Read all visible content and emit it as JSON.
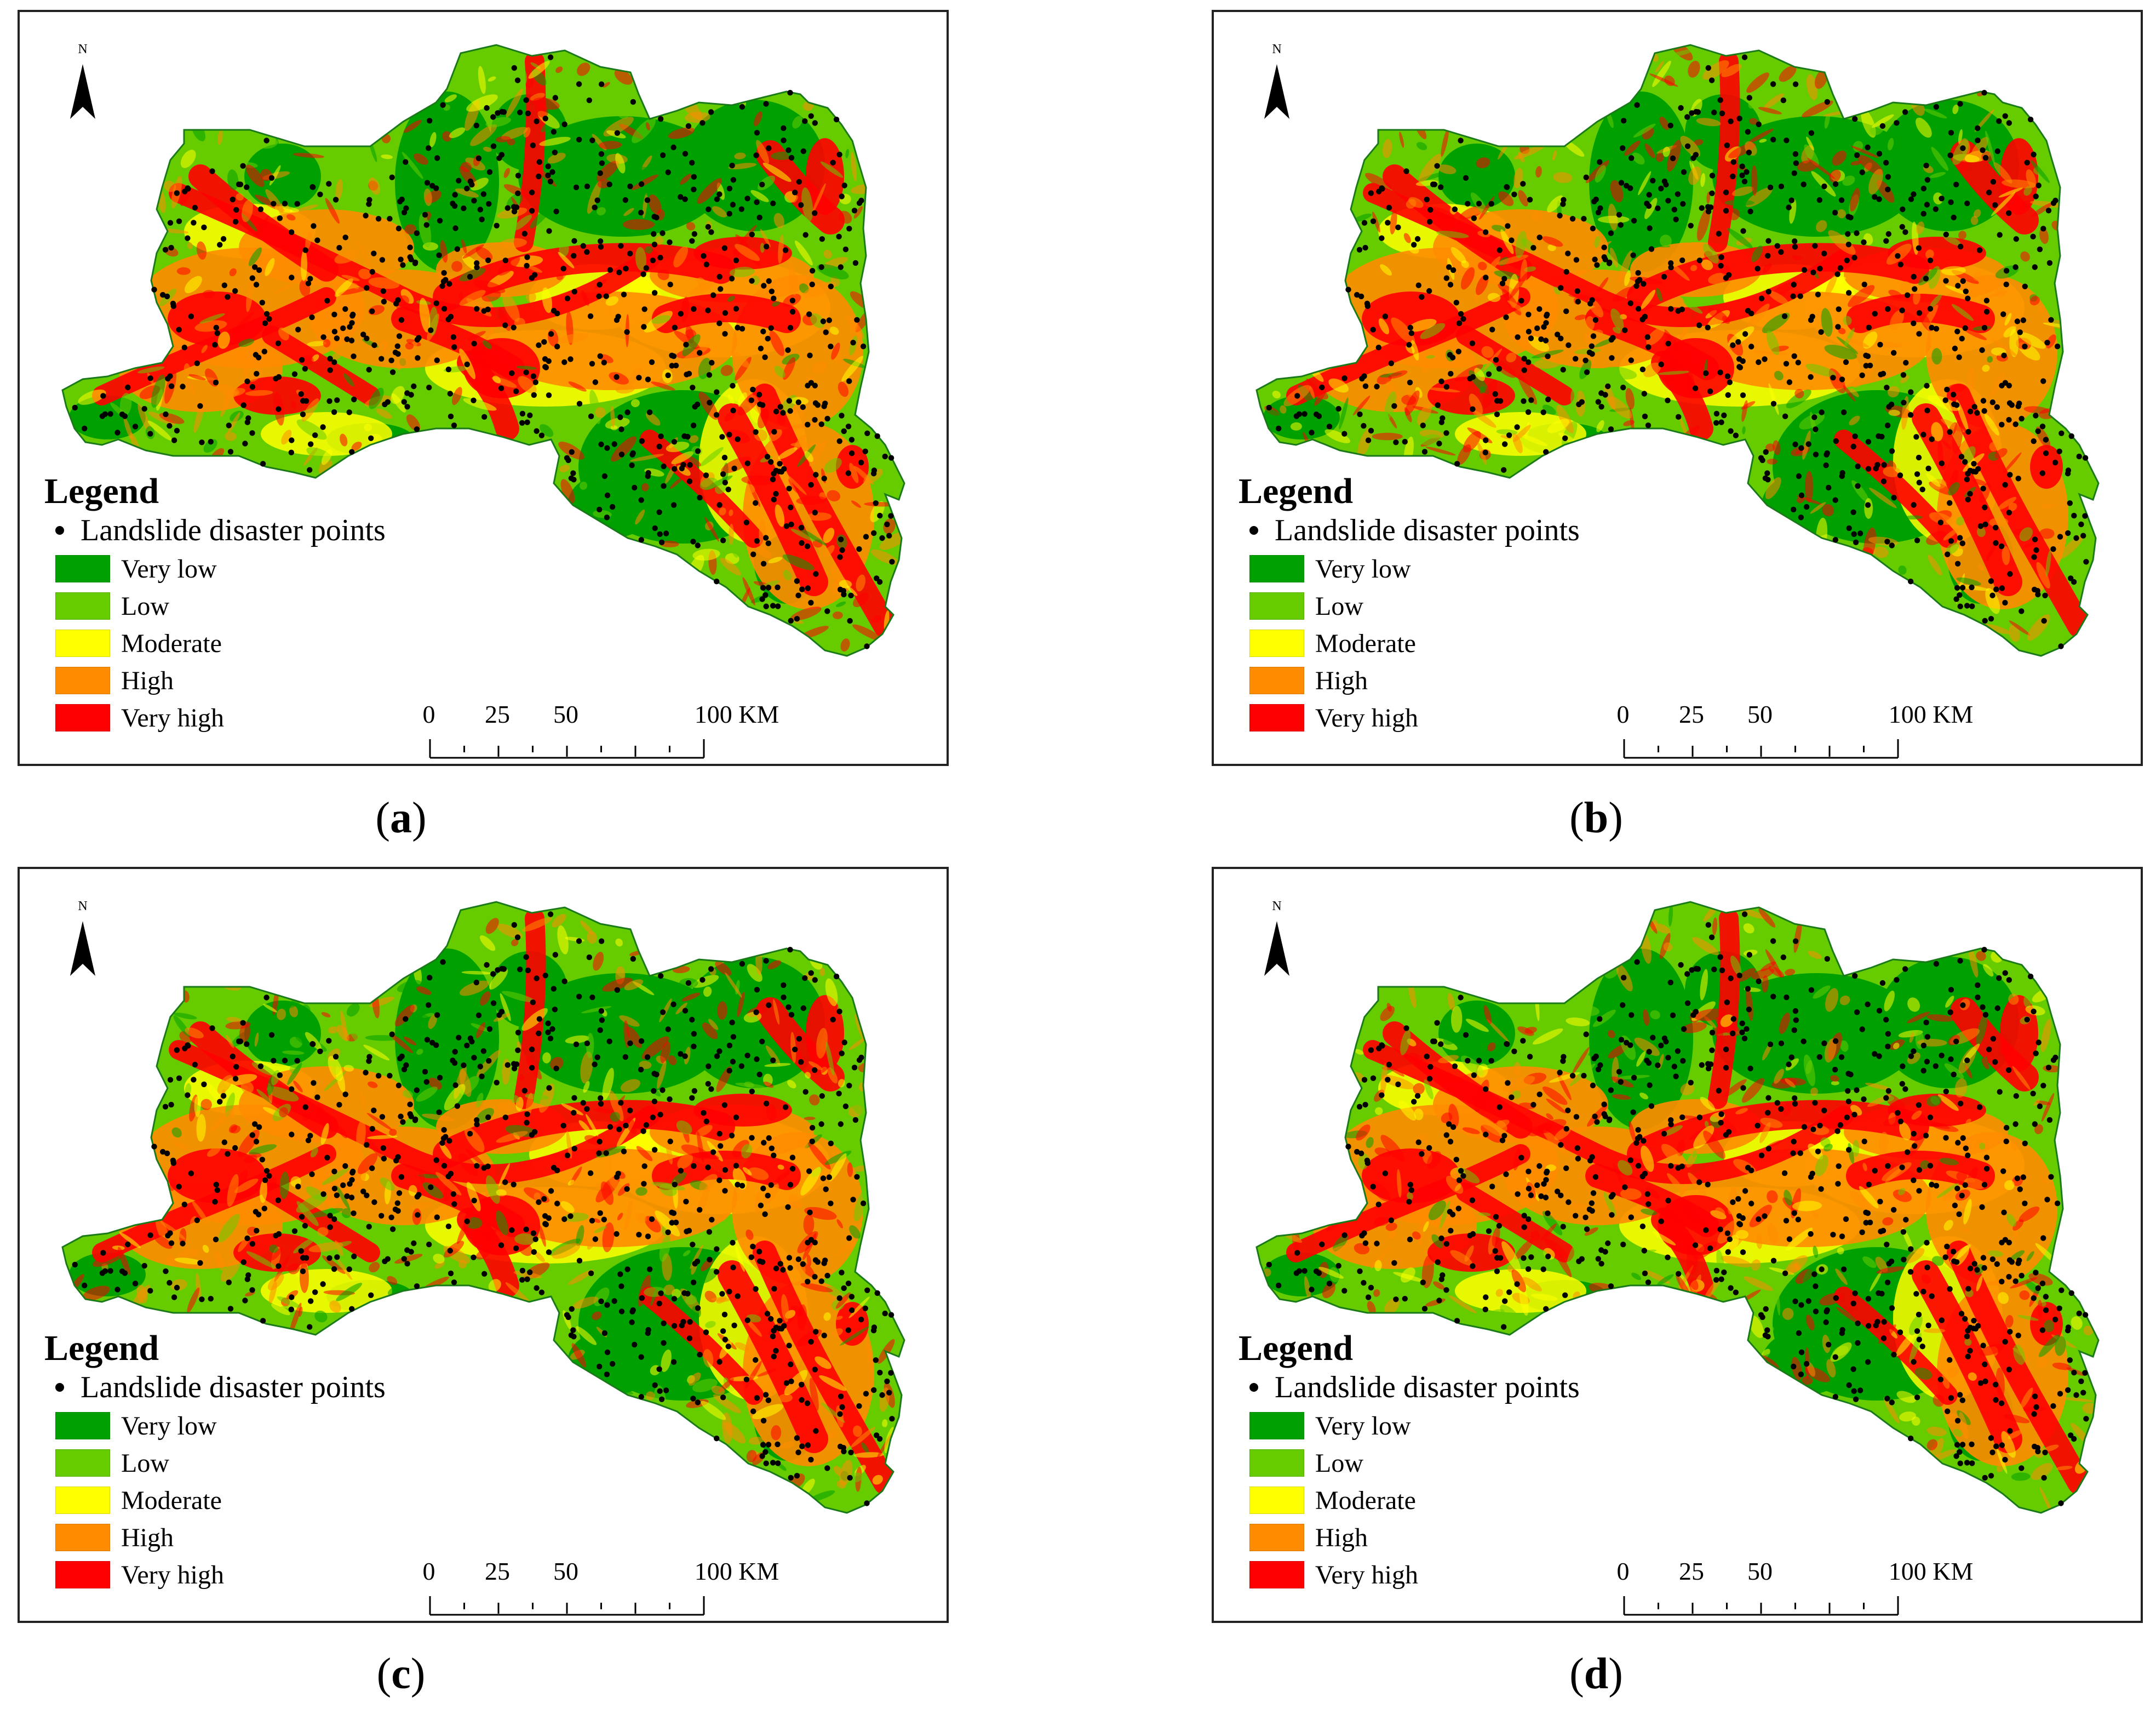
{
  "figure": {
    "panels": [
      {
        "id": "a",
        "caption_letter": "a"
      },
      {
        "id": "b",
        "caption_letter": "b"
      },
      {
        "id": "c",
        "caption_letter": "c"
      },
      {
        "id": "d",
        "caption_letter": "d"
      }
    ]
  },
  "map": {
    "north_label": "N",
    "legend": {
      "title": "Legend",
      "points_label": "Landslide disaster points",
      "classes": [
        {
          "label": "Very low",
          "color": "#00a000"
        },
        {
          "label": "Low",
          "color": "#66cc00"
        },
        {
          "label": "Moderate",
          "color": "#ffff00"
        },
        {
          "label": "High",
          "color": "#ff8c00"
        },
        {
          "label": "Very high",
          "color": "#ff0000"
        }
      ]
    },
    "scalebar": {
      "labels": [
        "0",
        "25",
        "50",
        "100 KM"
      ],
      "values": [
        0,
        25,
        50,
        100
      ],
      "max_km": 100
    }
  },
  "caption_parens": {
    "open": "(",
    "close": ")"
  }
}
